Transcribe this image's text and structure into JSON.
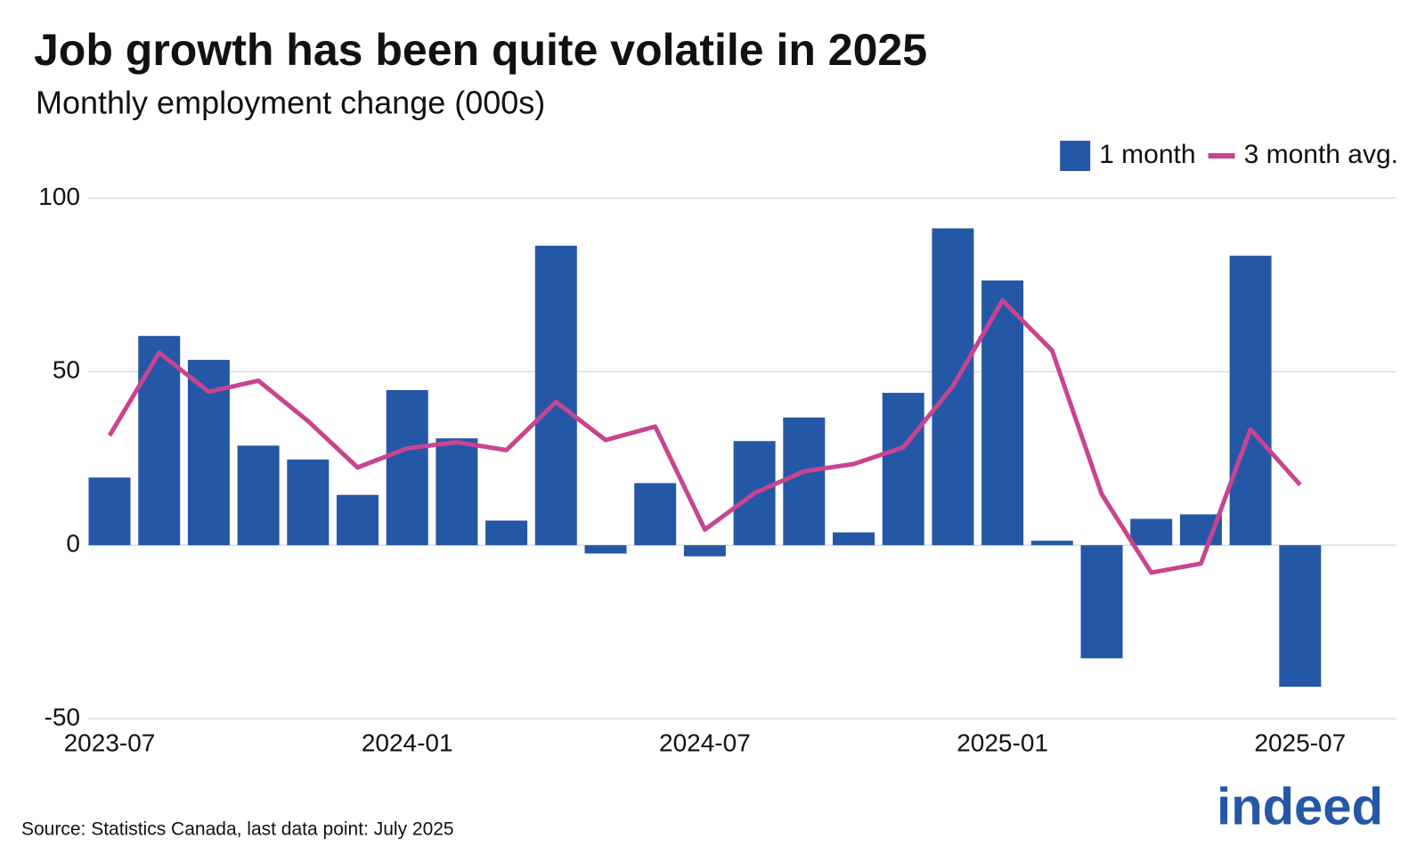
{
  "chart_data": {
    "type": "bar",
    "title": "Job growth has been quite volatile in 2025",
    "subtitle": "Monthly employment change (000s)",
    "source": "Source: Statistics Canada, last data point: July 2025",
    "logo": "indeed",
    "categories": [
      "2023-07",
      null,
      null,
      null,
      null,
      null,
      "2024-01",
      null,
      null,
      null,
      null,
      null,
      "2024-07",
      null,
      null,
      null,
      null,
      null,
      "2025-01",
      null,
      null,
      null,
      null,
      null,
      "2025-07"
    ],
    "series": [
      {
        "name": "1 month",
        "type": "bar",
        "color": "#2557a7",
        "values": [
          19.5,
          60.3,
          53.4,
          28.7,
          24.7,
          14.5,
          44.7,
          30.8,
          7.1,
          86.3,
          -2.4,
          17.9,
          -3.2,
          30,
          36.8,
          3.7,
          43.9,
          91.3,
          76.3,
          1.3,
          -32.6,
          7.6,
          8.9,
          83.4,
          -40.8
        ]
      },
      {
        "name": "3 month avg.",
        "type": "line",
        "color": "#c8448f",
        "values": [
          31.6,
          55.5,
          44.2,
          47.4,
          35.8,
          22.4,
          27.9,
          29.7,
          27.4,
          41.3,
          30.3,
          34.2,
          4.5,
          15,
          21.3,
          23.4,
          28.2,
          45.8,
          70.5,
          56.1,
          14.7,
          -7.9,
          -5.3,
          33.4,
          17.4
        ]
      }
    ],
    "ylim": [
      -50,
      100
    ],
    "yticks": [
      -50,
      0,
      50,
      100
    ],
    "grid": true,
    "legend": "top-right"
  }
}
